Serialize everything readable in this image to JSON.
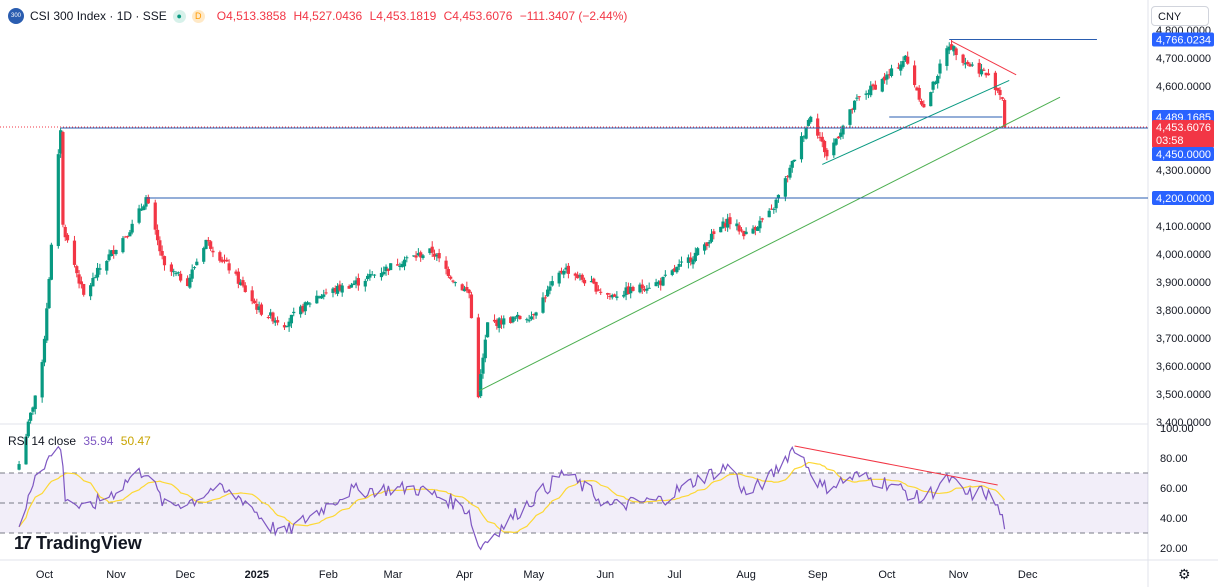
{
  "header": {
    "logo_text": "300",
    "symbol": "CSI 300 Index · 1D · SSE",
    "open": "O4,513.3858",
    "high": "H4,527.0436",
    "low": "L4,453.1819",
    "close": "C4,453.6076",
    "change": "−111.3407 (−2.44%)",
    "badge_d": "D"
  },
  "currency": "CNY",
  "rsi_header": {
    "label": "RSI 14 close",
    "rsi": "35.94",
    "ma": "50.47"
  },
  "brand": {
    "mark": "17",
    "name": "TradingView"
  },
  "colors": {
    "up": "#089981",
    "down": "#f23645",
    "hline": "#2a5db0",
    "trend": "#4caf50",
    "rsi": "#7e57c2",
    "rsi_ma": "#fdd835"
  },
  "chart_data": [
    {
      "type": "candlestick",
      "y_axis": {
        "ticks": [
          3400,
          3500,
          3600,
          3700,
          3800,
          3900,
          4000,
          4100,
          4200,
          4300,
          4400,
          4500,
          4600,
          4700,
          4800
        ],
        "tick_labels": [
          "3,400.0000",
          "3,500.0000",
          "3,600.0000",
          "3,700.0000",
          "3,800.0000",
          "3,900.0000",
          "4,000.0000",
          "4,100.0000",
          "4,200.0000",
          "4,300.0000",
          "4,400.0000",
          "4,500.0000",
          "4,600.0000",
          "4,700.0000",
          "4,800.0000"
        ]
      },
      "x_axis": {
        "tick_labels": [
          "Oct",
          "Nov",
          "Dec",
          "2025",
          "Feb",
          "Mar",
          "Apr",
          "May",
          "Jun",
          "Jul",
          "Aug",
          "Sep",
          "Oct",
          "Nov",
          "Dec"
        ]
      },
      "price_labels": [
        {
          "value": 4766.0234,
          "text": "4,766.0234",
          "color": "#2962ff"
        },
        {
          "value": 4489.1685,
          "text": "4,489.1685",
          "color": "#2962ff"
        },
        {
          "value": 4453.6076,
          "text": "4,453.6076",
          "sub": "03:58",
          "color": "#f23645"
        },
        {
          "value": 4450.0,
          "text": "4,450.0000",
          "color": "#2962ff"
        },
        {
          "value": 4200.0,
          "text": "4,200.0000",
          "color": "#2962ff"
        }
      ],
      "horizontal_levels": [
        4766.0234,
        4489.1685,
        4450.0,
        4200.0
      ],
      "anchors": [
        [
          "2024-09-20",
          3250
        ],
        [
          "2024-09-30",
          3600
        ],
        [
          "2024-10-08",
          4450
        ],
        [
          "2024-10-09",
          4100
        ],
        [
          "2024-10-18",
          3850
        ],
        [
          "2024-10-25",
          3950
        ],
        [
          "2024-11-08",
          4100
        ],
        [
          "2024-11-14",
          4200
        ],
        [
          "2024-11-22",
          3950
        ],
        [
          "2024-12-02",
          3900
        ],
        [
          "2024-12-10",
          4050
        ],
        [
          "2024-12-20",
          3950
        ],
        [
          "2025-01-02",
          3800
        ],
        [
          "2025-01-13",
          3750
        ],
        [
          "2025-01-27",
          3850
        ],
        [
          "2025-02-14",
          3900
        ],
        [
          "2025-03-06",
          3980
        ],
        [
          "2025-03-18",
          4010
        ],
        [
          "2025-03-28",
          3900
        ],
        [
          "2025-04-03",
          3860
        ],
        [
          "2025-04-07",
          3500
        ],
        [
          "2025-04-11",
          3750
        ],
        [
          "2025-04-30",
          3780
        ],
        [
          "2025-05-14",
          3950
        ],
        [
          "2025-06-03",
          3850
        ],
        [
          "2025-06-25",
          3900
        ],
        [
          "2025-07-10",
          4000
        ],
        [
          "2025-07-24",
          4120
        ],
        [
          "2025-08-01",
          4070
        ],
        [
          "2025-08-12",
          4150
        ],
        [
          "2025-08-20",
          4300
        ],
        [
          "2025-08-29",
          4500
        ],
        [
          "2025-09-05",
          4350
        ],
        [
          "2025-09-18",
          4550
        ],
        [
          "2025-10-02",
          4640
        ],
        [
          "2025-10-09",
          4700
        ],
        [
          "2025-10-17",
          4520
        ],
        [
          "2025-10-28",
          4750
        ],
        [
          "2025-11-05",
          4680
        ],
        [
          "2025-11-12",
          4650
        ],
        [
          "2025-11-17",
          4600
        ],
        [
          "2025-11-20",
          4560
        ],
        [
          "2025-11-21",
          4453.6
        ]
      ],
      "trendlines": [
        {
          "from": [
            "2025-04-07",
            3510
          ],
          "to": [
            "2025-12-15",
            4560
          ],
          "color": "#4caf50"
        },
        {
          "from": [
            "2025-09-03",
            4320
          ],
          "to": [
            "2025-11-23",
            4620
          ],
          "color": "#089981"
        },
        {
          "from": [
            "2025-10-29",
            4760
          ],
          "to": [
            "2025-11-26",
            4640
          ],
          "color": "#f23645"
        },
        {
          "from": [
            "2025-10-02",
            4489.1685
          ],
          "to": [
            "2025-11-20",
            4489.1685
          ],
          "color": "#2a5db0"
        },
        {
          "from": [
            "2025-10-28",
            4766.0234
          ],
          "to": [
            "2025-12-31",
            4766.0234
          ],
          "color": "#2a5db0"
        }
      ]
    },
    {
      "type": "line",
      "title": "RSI 14 close",
      "series": [
        {
          "name": "RSI",
          "last": 35.94
        },
        {
          "name": "MA",
          "last": 50.47
        }
      ],
      "y_axis": {
        "ticks": [
          20,
          40,
          60,
          80,
          100
        ],
        "tick_labels": [
          "20.00",
          "40.00",
          "60.00",
          "80.00",
          "100.00"
        ]
      },
      "bands": [
        30,
        50,
        70
      ],
      "anchors": [
        [
          "2024-09-20",
          30
        ],
        [
          "2024-09-27",
          70
        ],
        [
          "2024-10-08",
          88
        ],
        [
          "2024-10-10",
          55
        ],
        [
          "2024-10-18",
          45
        ],
        [
          "2024-11-01",
          58
        ],
        [
          "2024-11-08",
          68
        ],
        [
          "2024-11-14",
          72
        ],
        [
          "2024-11-22",
          48
        ],
        [
          "2024-12-05",
          52
        ],
        [
          "2024-12-13",
          60
        ],
        [
          "2024-12-27",
          52
        ],
        [
          "2025-01-06",
          35
        ],
        [
          "2025-01-13",
          30
        ],
        [
          "2025-02-10",
          58
        ],
        [
          "2025-03-10",
          60
        ],
        [
          "2025-03-25",
          52
        ],
        [
          "2025-04-03",
          45
        ],
        [
          "2025-04-07",
          20
        ],
        [
          "2025-04-25",
          45
        ],
        [
          "2025-05-14",
          70
        ],
        [
          "2025-06-03",
          48
        ],
        [
          "2025-06-25",
          52
        ],
        [
          "2025-07-10",
          65
        ],
        [
          "2025-07-25",
          75
        ],
        [
          "2025-08-01",
          55
        ],
        [
          "2025-08-12",
          68
        ],
        [
          "2025-08-22",
          88
        ],
        [
          "2025-09-03",
          60
        ],
        [
          "2025-09-18",
          68
        ],
        [
          "2025-10-02",
          63
        ],
        [
          "2025-10-16",
          52
        ],
        [
          "2025-10-28",
          66
        ],
        [
          "2025-11-05",
          55
        ],
        [
          "2025-11-12",
          58
        ],
        [
          "2025-11-17",
          50
        ],
        [
          "2025-11-21",
          35.94
        ]
      ],
      "divergence_line": {
        "from": [
          "2025-08-22",
          88
        ],
        "to": [
          "2025-11-18",
          62
        ],
        "color": "#f23645"
      }
    }
  ]
}
